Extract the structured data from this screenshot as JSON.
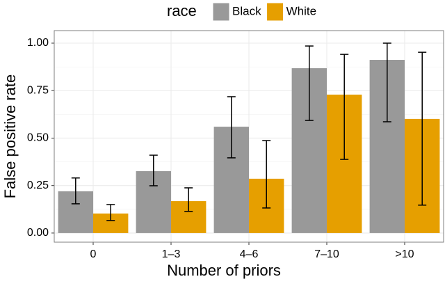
{
  "chart_data": {
    "type": "bar",
    "x_label": "Number of priors",
    "y_label": "False positive rate",
    "legend_title": "race",
    "legend_position": "top",
    "categories": [
      "0",
      "1–3",
      "4–6",
      "7–10",
      ">10"
    ],
    "series": [
      {
        "name": "Black",
        "color": "#999999",
        "values": [
          0.22,
          0.326,
          0.56,
          0.868,
          0.912
        ],
        "ci_low": [
          0.154,
          0.249,
          0.396,
          0.593,
          0.586
        ],
        "ci_high": [
          0.29,
          0.41,
          0.718,
          0.985,
          1.0
        ]
      },
      {
        "name": "White",
        "color": "#E69F00",
        "values": [
          0.103,
          0.168,
          0.286,
          0.729,
          0.601
        ],
        "ci_low": [
          0.066,
          0.114,
          0.132,
          0.388,
          0.147
        ],
        "ci_high": [
          0.15,
          0.238,
          0.487,
          0.941,
          0.952
        ]
      }
    ],
    "ylim": [
      -0.048,
      1.066
    ],
    "yticks": [
      {
        "value": 0,
        "label": "0.00"
      },
      {
        "value": 0.25,
        "label": "0.25"
      },
      {
        "value": 0.5,
        "label": "0.50"
      },
      {
        "value": 0.75,
        "label": "0.75"
      },
      {
        "value": 1,
        "label": "1.00"
      }
    ],
    "grid": true
  }
}
